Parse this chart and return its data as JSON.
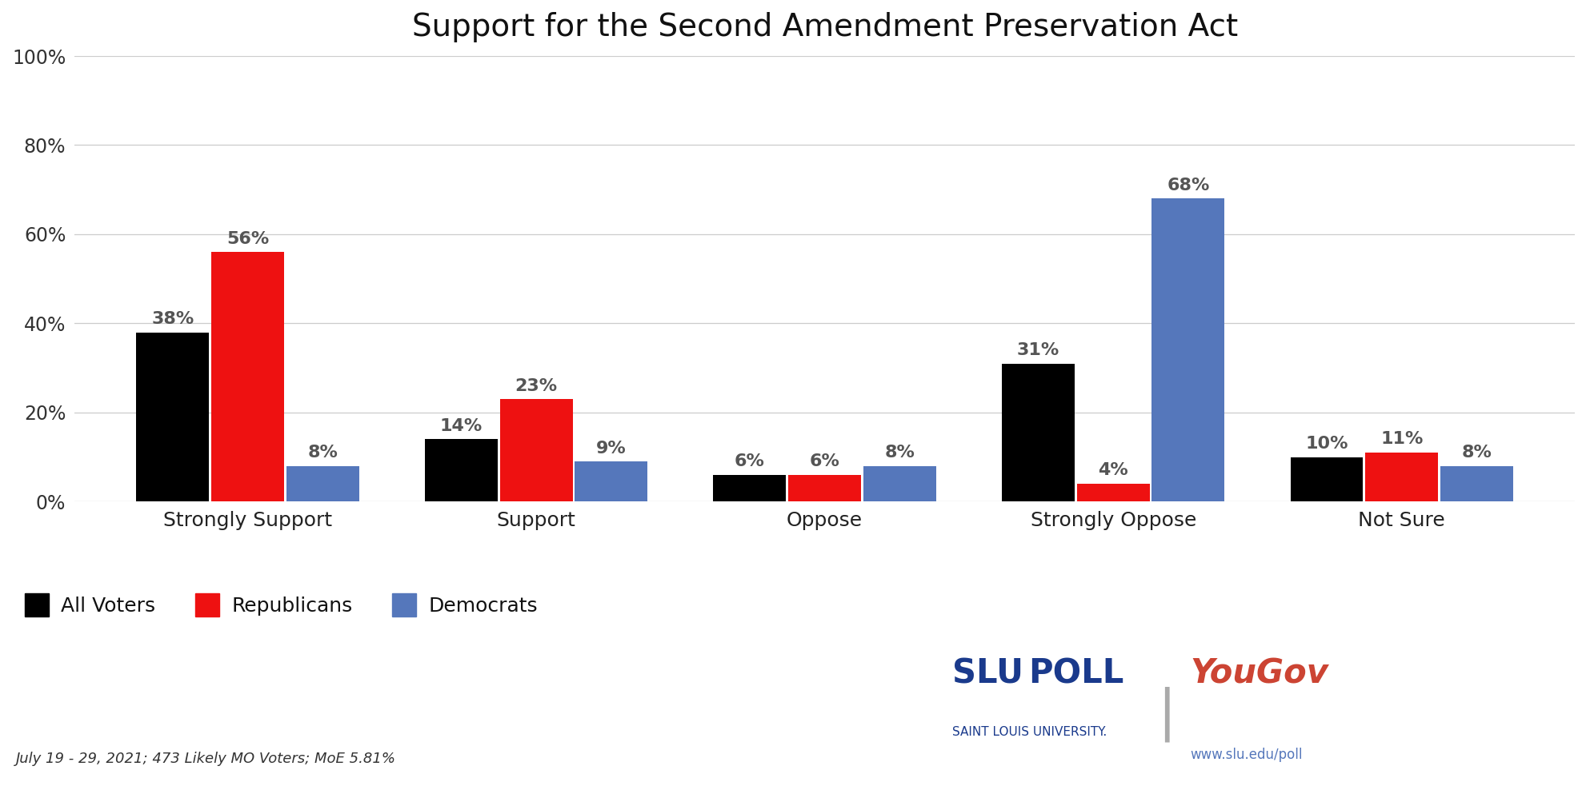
{
  "title": "Support for the Second Amendment Preservation Act",
  "categories": [
    "Strongly Support",
    "Support",
    "Oppose",
    "Strongly Oppose",
    "Not Sure"
  ],
  "series": {
    "All Voters": [
      38,
      14,
      6,
      31,
      10
    ],
    "Republicans": [
      56,
      23,
      6,
      4,
      11
    ],
    "Democrats": [
      8,
      9,
      8,
      68,
      8
    ]
  },
  "colors": {
    "All Voters": "#000000",
    "Republicans": "#ee1111",
    "Democrats": "#5577bb"
  },
  "ylim": [
    0,
    100
  ],
  "yticks": [
    0,
    20,
    40,
    60,
    80,
    100
  ],
  "ytick_labels": [
    "0%",
    "20%",
    "40%",
    "60%",
    "80%",
    "100%"
  ],
  "bar_width": 0.26,
  "footnote": "July 19 - 29, 2021; 473 Likely MO Voters; MoE 5.81%",
  "background_color": "#ffffff",
  "title_fontsize": 28,
  "label_fontsize": 16,
  "tick_fontsize": 17,
  "legend_fontsize": 18,
  "footnote_fontsize": 13,
  "slu_color": "#1a3a8c",
  "yougov_color": "#cc4433",
  "url_color": "#5577bb"
}
